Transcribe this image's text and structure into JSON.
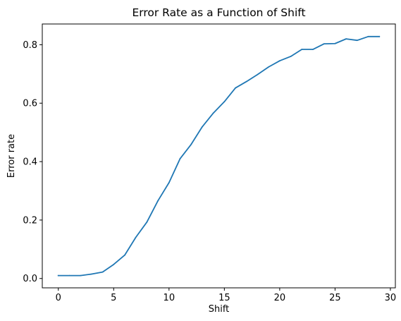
{
  "chart_data": {
    "type": "line",
    "title": "Error Rate as a Function of Shift",
    "xlabel": "Shift",
    "ylabel": "Error rate",
    "xlim": [
      -1.45,
      30.45
    ],
    "ylim": [
      -0.032,
      0.871
    ],
    "x_ticks": [
      0,
      5,
      10,
      15,
      20,
      25,
      30
    ],
    "y_ticks": [
      0.0,
      0.2,
      0.4,
      0.6,
      0.8
    ],
    "x_tick_labels": [
      "0",
      "5",
      "10",
      "15",
      "20",
      "25",
      "30"
    ],
    "y_tick_labels": [
      "0.0",
      "0.2",
      "0.4",
      "0.6",
      "0.8"
    ],
    "grid": false,
    "series": [
      {
        "color": "#1f77b4",
        "x": [
          0,
          1,
          2,
          3,
          4,
          5,
          6,
          7,
          8,
          9,
          10,
          11,
          12,
          13,
          14,
          15,
          16,
          17,
          18,
          19,
          20,
          21,
          22,
          23,
          24,
          25,
          26,
          27,
          28,
          29
        ],
        "y": [
          0.01,
          0.01,
          0.01,
          0.015,
          0.022,
          0.048,
          0.08,
          0.141,
          0.193,
          0.266,
          0.328,
          0.41,
          0.459,
          0.519,
          0.566,
          0.605,
          0.652,
          0.674,
          0.698,
          0.724,
          0.745,
          0.76,
          0.784,
          0.784,
          0.803,
          0.804,
          0.82,
          0.815,
          0.828,
          0.828
        ]
      }
    ]
  }
}
